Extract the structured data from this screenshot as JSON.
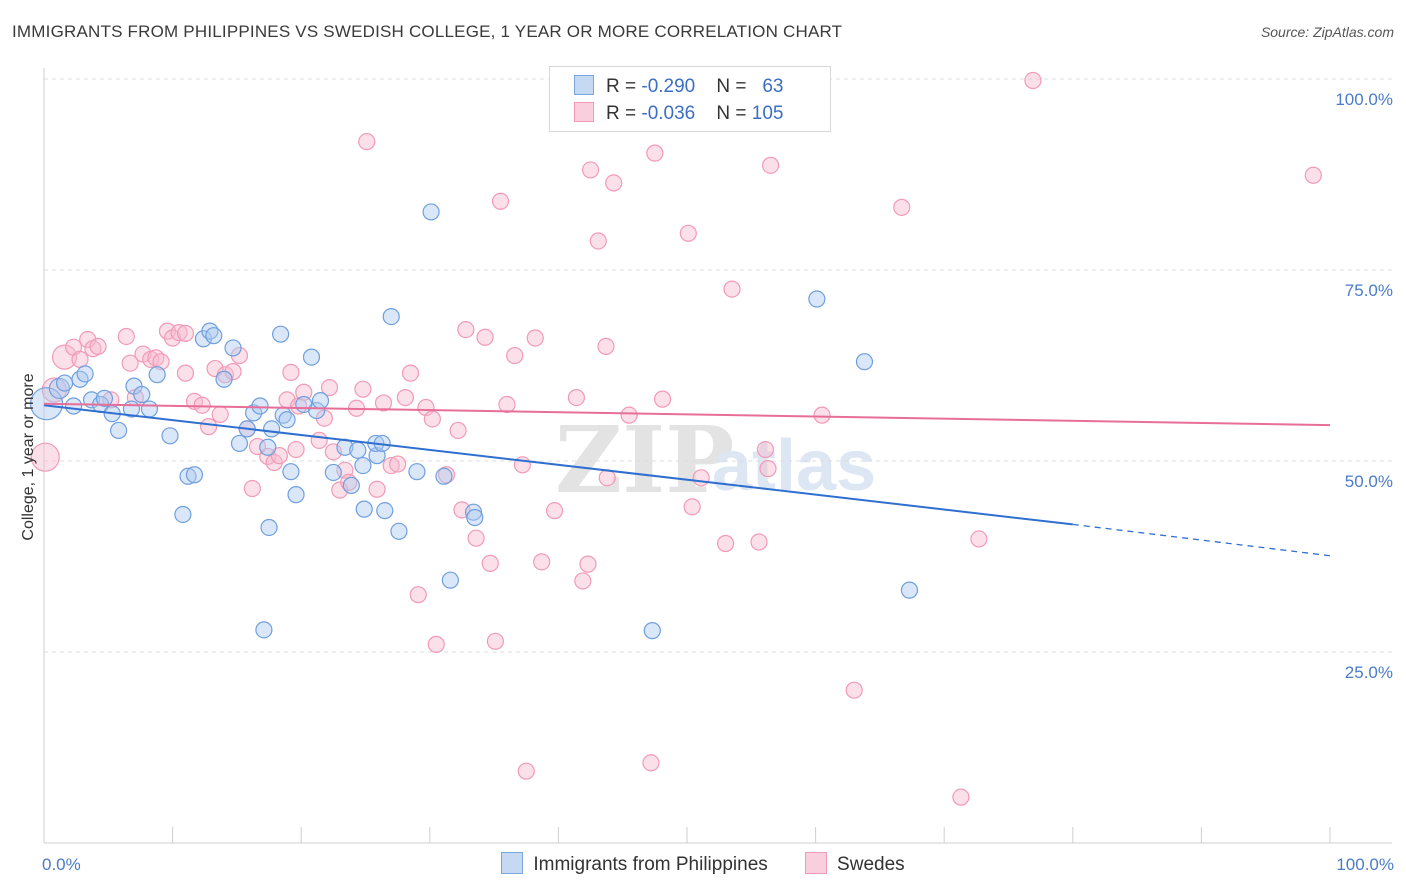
{
  "header": {
    "title": "IMMIGRANTS FROM PHILIPPINES VS SWEDISH COLLEGE, 1 YEAR OR MORE CORRELATION CHART",
    "source": "Source: ZipAtlas.com"
  },
  "watermark": {
    "zip": "ZIP",
    "atlas": "atlas"
  },
  "legend_top": [
    {
      "r_label": "R = ",
      "r_value": "-0.290",
      "n_label": "N = ",
      "n_value": "63",
      "color": "#7aa6e0"
    },
    {
      "r_label": "R = ",
      "r_value": "-0.036",
      "n_label": "N = ",
      "n_value": "105",
      "color": "#f19bb7"
    }
  ],
  "colors": {
    "blue": "#6f9fdf",
    "blue_line": "#2f6fd0",
    "pink": "#f29ab6",
    "pink_line": "#e76e98",
    "tick": "#4a7cc7"
  },
  "chart_data": {
    "type": "scatter",
    "xlabel": "",
    "ylabel": "College, 1 year or more",
    "xlim": [
      0,
      100
    ],
    "ylim": [
      0,
      100
    ],
    "x_tick_labels": [
      "0.0%",
      "100.0%"
    ],
    "y_ticks": [
      25,
      50,
      75,
      100
    ],
    "y_tick_labels": [
      "25.0%",
      "50.0%",
      "75.0%",
      "100.0%"
    ],
    "grid": true,
    "legend": "top-center",
    "series": [
      {
        "name": "Immigrants from Philippines",
        "color": "#6f9fdf",
        "trend": {
          "x": [
            0,
            80
          ],
          "y": [
            57.3,
            41.7
          ],
          "dashed_to": [
            100,
            37.6
          ]
        },
        "points": [
          [
            0.2,
            57.5,
            16
          ],
          [
            1.2,
            59.5,
            10
          ],
          [
            1.6,
            60.2,
            8
          ],
          [
            2.3,
            57.2,
            8
          ],
          [
            2.8,
            60.7,
            8
          ],
          [
            3.2,
            61.4,
            8
          ],
          [
            3.7,
            58.0,
            8
          ],
          [
            4.4,
            57.4,
            8
          ],
          [
            4.7,
            58.2,
            8
          ],
          [
            5.3,
            56.2,
            8
          ],
          [
            5.8,
            54.0,
            8
          ],
          [
            6.8,
            56.8,
            8
          ],
          [
            7.0,
            59.8,
            8
          ],
          [
            7.6,
            58.7,
            8
          ],
          [
            8.2,
            56.8,
            8
          ],
          [
            8.8,
            61.3,
            8
          ],
          [
            9.8,
            53.3,
            8
          ],
          [
            10.8,
            43.0,
            8
          ],
          [
            11.2,
            48.0,
            8
          ],
          [
            11.7,
            48.2,
            8
          ],
          [
            12.4,
            66.0,
            8
          ],
          [
            12.9,
            67.0,
            8
          ],
          [
            13.2,
            66.4,
            8
          ],
          [
            14.0,
            60.7,
            8
          ],
          [
            14.7,
            64.8,
            8
          ],
          [
            15.2,
            52.3,
            8
          ],
          [
            15.8,
            54.2,
            8
          ],
          [
            16.3,
            56.3,
            8
          ],
          [
            16.8,
            57.2,
            8
          ],
          [
            17.4,
            51.8,
            8
          ],
          [
            17.7,
            54.2,
            8
          ],
          [
            18.6,
            56.0,
            8
          ],
          [
            18.9,
            55.4,
            8
          ],
          [
            17.1,
            27.9,
            8
          ],
          [
            17.5,
            41.3,
            8
          ],
          [
            18.4,
            66.6,
            8
          ],
          [
            19.2,
            48.6,
            8
          ],
          [
            19.6,
            45.6,
            8
          ],
          [
            20.2,
            57.4,
            8
          ],
          [
            20.8,
            63.6,
            8
          ],
          [
            21.2,
            56.6,
            8
          ],
          [
            21.5,
            57.9,
            8
          ],
          [
            22.5,
            48.5,
            8
          ],
          [
            23.4,
            51.8,
            8
          ],
          [
            23.9,
            46.8,
            8
          ],
          [
            24.4,
            51.4,
            8
          ],
          [
            24.8,
            49.4,
            8
          ],
          [
            24.9,
            43.7,
            8
          ],
          [
            25.9,
            50.7,
            8
          ],
          [
            25.8,
            52.3,
            8
          ],
          [
            26.3,
            52.3,
            8
          ],
          [
            26.5,
            43.5,
            8
          ],
          [
            27.0,
            68.9,
            8
          ],
          [
            27.6,
            40.8,
            8
          ],
          [
            29.0,
            48.6,
            8
          ],
          [
            30.1,
            82.6,
            8
          ],
          [
            31.1,
            48.0,
            8
          ],
          [
            31.6,
            34.4,
            8
          ],
          [
            33.4,
            43.3,
            8
          ],
          [
            33.5,
            42.6,
            8
          ],
          [
            47.3,
            27.8,
            8
          ],
          [
            60.1,
            71.2,
            8
          ],
          [
            63.8,
            63.0,
            8
          ],
          [
            67.3,
            33.1,
            8
          ]
        ]
      },
      {
        "name": "Swedes",
        "color": "#f29ab6",
        "trend": {
          "x": [
            0,
            100
          ],
          "y": [
            57.5,
            54.7
          ]
        },
        "points": [
          [
            0.1,
            50.5,
            14
          ],
          [
            0.8,
            59.3,
            12
          ],
          [
            1.6,
            63.6,
            12
          ],
          [
            2.3,
            64.9,
            8
          ],
          [
            2.8,
            63.3,
            8
          ],
          [
            3.4,
            65.9,
            8
          ],
          [
            3.8,
            64.7,
            8
          ],
          [
            4.2,
            65.0,
            8
          ],
          [
            5.2,
            58.0,
            8
          ],
          [
            6.4,
            66.3,
            8
          ],
          [
            6.7,
            62.8,
            8
          ],
          [
            7.1,
            58.3,
            8
          ],
          [
            7.7,
            64.0,
            8
          ],
          [
            8.3,
            63.3,
            8
          ],
          [
            8.7,
            63.5,
            8
          ],
          [
            9.1,
            63.0,
            8
          ],
          [
            9.6,
            67.0,
            8
          ],
          [
            10.0,
            66.1,
            8
          ],
          [
            10.5,
            66.8,
            8
          ],
          [
            11.0,
            66.7,
            8
          ],
          [
            11.0,
            61.5,
            8
          ],
          [
            11.7,
            57.8,
            8
          ],
          [
            12.3,
            57.3,
            8
          ],
          [
            12.8,
            54.5,
            8
          ],
          [
            13.3,
            62.1,
            8
          ],
          [
            13.7,
            56.1,
            8
          ],
          [
            14.1,
            61.3,
            8
          ],
          [
            14.7,
            61.7,
            8
          ],
          [
            15.2,
            63.8,
            8
          ],
          [
            15.8,
            54.2,
            8
          ],
          [
            16.2,
            46.4,
            8
          ],
          [
            16.6,
            51.9,
            8
          ],
          [
            17.4,
            50.6,
            8
          ],
          [
            17.9,
            49.8,
            8
          ],
          [
            18.3,
            50.7,
            8
          ],
          [
            18.9,
            58.0,
            8
          ],
          [
            19.2,
            61.6,
            8
          ],
          [
            19.6,
            51.5,
            8
          ],
          [
            19.8,
            57.2,
            8
          ],
          [
            20.2,
            59.0,
            8
          ],
          [
            21.4,
            52.7,
            8
          ],
          [
            21.8,
            55.6,
            8
          ],
          [
            22.2,
            59.6,
            8
          ],
          [
            22.5,
            51.2,
            8
          ],
          [
            23.0,
            46.2,
            8
          ],
          [
            23.4,
            48.8,
            8
          ],
          [
            23.7,
            47.2,
            8
          ],
          [
            24.3,
            56.9,
            8
          ],
          [
            24.8,
            59.4,
            8
          ],
          [
            25.1,
            91.8,
            8
          ],
          [
            25.9,
            46.3,
            8
          ],
          [
            26.4,
            57.6,
            8
          ],
          [
            27.0,
            49.4,
            8
          ],
          [
            27.5,
            49.6,
            8
          ],
          [
            28.1,
            58.3,
            8
          ],
          [
            28.5,
            61.5,
            8
          ],
          [
            29.1,
            32.5,
            8
          ],
          [
            29.7,
            57.0,
            8
          ],
          [
            30.2,
            55.5,
            8
          ],
          [
            30.5,
            26.0,
            8
          ],
          [
            31.3,
            48.2,
            8
          ],
          [
            32.2,
            54.0,
            8
          ],
          [
            32.5,
            43.6,
            8
          ],
          [
            32.8,
            67.2,
            8
          ],
          [
            33.6,
            39.9,
            8
          ],
          [
            34.3,
            66.2,
            8
          ],
          [
            34.7,
            36.6,
            8
          ],
          [
            35.1,
            26.4,
            8
          ],
          [
            35.5,
            84.0,
            8
          ],
          [
            36.0,
            57.4,
            8
          ],
          [
            36.6,
            63.8,
            8
          ],
          [
            37.2,
            49.5,
            8
          ],
          [
            37.5,
            9.4,
            8
          ],
          [
            38.2,
            66.1,
            8
          ],
          [
            38.7,
            36.8,
            8
          ],
          [
            39.7,
            43.5,
            8
          ],
          [
            41.4,
            58.3,
            8
          ],
          [
            41.9,
            34.3,
            8
          ],
          [
            42.3,
            36.5,
            8
          ],
          [
            42.5,
            88.1,
            8
          ],
          [
            43.1,
            78.8,
            8
          ],
          [
            43.7,
            65.0,
            8
          ],
          [
            43.8,
            47.8,
            8
          ],
          [
            44.3,
            86.4,
            8
          ],
          [
            45.5,
            56.0,
            8
          ],
          [
            46.1,
            100.0,
            8
          ],
          [
            47.2,
            10.5,
            8
          ],
          [
            47.5,
            90.3,
            8
          ],
          [
            48.1,
            58.1,
            8
          ],
          [
            50.1,
            79.8,
            8
          ],
          [
            50.4,
            44.0,
            8
          ],
          [
            51.1,
            47.8,
            8
          ],
          [
            53.0,
            39.2,
            8
          ],
          [
            53.5,
            72.5,
            8
          ],
          [
            55.6,
            39.4,
            8
          ],
          [
            56.1,
            51.5,
            8
          ],
          [
            56.3,
            49.0,
            8
          ],
          [
            56.5,
            88.7,
            8
          ],
          [
            60.5,
            56.0,
            8
          ],
          [
            63.0,
            20.0,
            8
          ],
          [
            66.7,
            83.2,
            8
          ],
          [
            71.3,
            6.0,
            8
          ],
          [
            72.7,
            39.8,
            8
          ],
          [
            76.9,
            99.8,
            8
          ],
          [
            98.7,
            87.4,
            8
          ]
        ]
      }
    ]
  },
  "bottom_legend": [
    {
      "label": "Immigrants from Philippines",
      "color": "#7aa6e0"
    },
    {
      "label": "Swedes",
      "color": "#f19bb7"
    }
  ]
}
